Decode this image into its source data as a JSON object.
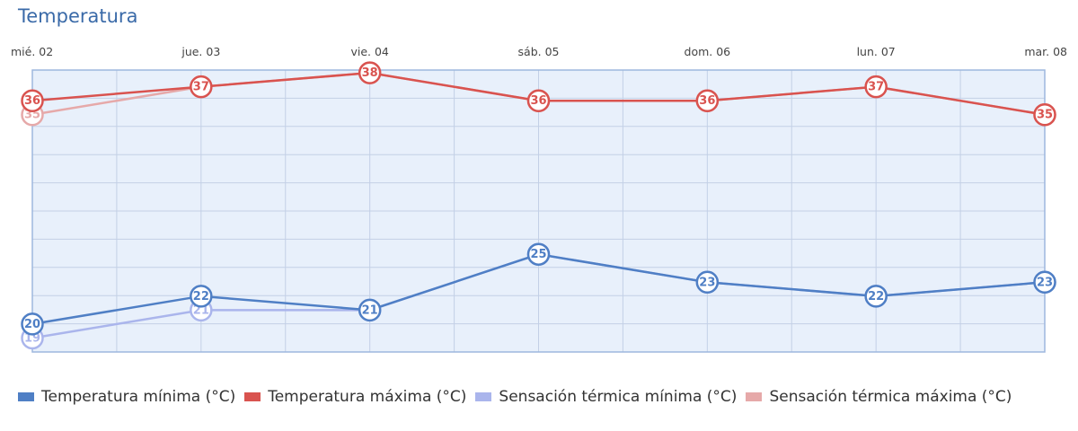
{
  "title": "Temperatura",
  "colors": {
    "min": "#4f7fc5",
    "max": "#d9534f",
    "feel_min": "#aab5ec",
    "feel_max": "#e6a9a9",
    "plot_bg": "#e8f0fb",
    "grid": "#c3d0e6",
    "border": "#9db7de"
  },
  "chart_data": {
    "type": "line",
    "title": "Temperatura",
    "categories": [
      "mié. 02",
      "jue. 03",
      "vie. 04",
      "sáb. 05",
      "dom. 06",
      "lun. 07",
      "mar. 08"
    ],
    "ylim": [
      18,
      38.2
    ],
    "grid": true,
    "legend_position": "bottom",
    "series": [
      {
        "key": "feel_max",
        "name": "Sensación térmica máxima (°C)",
        "values": [
          35,
          37,
          38,
          36,
          36,
          37,
          35
        ]
      },
      {
        "key": "feel_min",
        "name": "Sensación térmica mínima (°C)",
        "values": [
          19,
          21,
          21,
          25,
          23,
          22,
          23
        ]
      },
      {
        "key": "max",
        "name": "Temperatura máxima (°C)",
        "values": [
          36,
          37,
          38,
          36,
          36,
          37,
          35
        ]
      },
      {
        "key": "min",
        "name": "Temperatura mínima (°C)",
        "values": [
          20,
          22,
          21,
          25,
          23,
          22,
          23
        ]
      }
    ]
  },
  "legend": [
    {
      "key": "min",
      "label": "Temperatura mínima (°C)"
    },
    {
      "key": "max",
      "label": "Temperatura máxima (°C)"
    },
    {
      "key": "feel_min",
      "label": "Sensación térmica mínima (°C)"
    },
    {
      "key": "feel_max",
      "label": "Sensación térmica máxima (°C)"
    }
  ]
}
